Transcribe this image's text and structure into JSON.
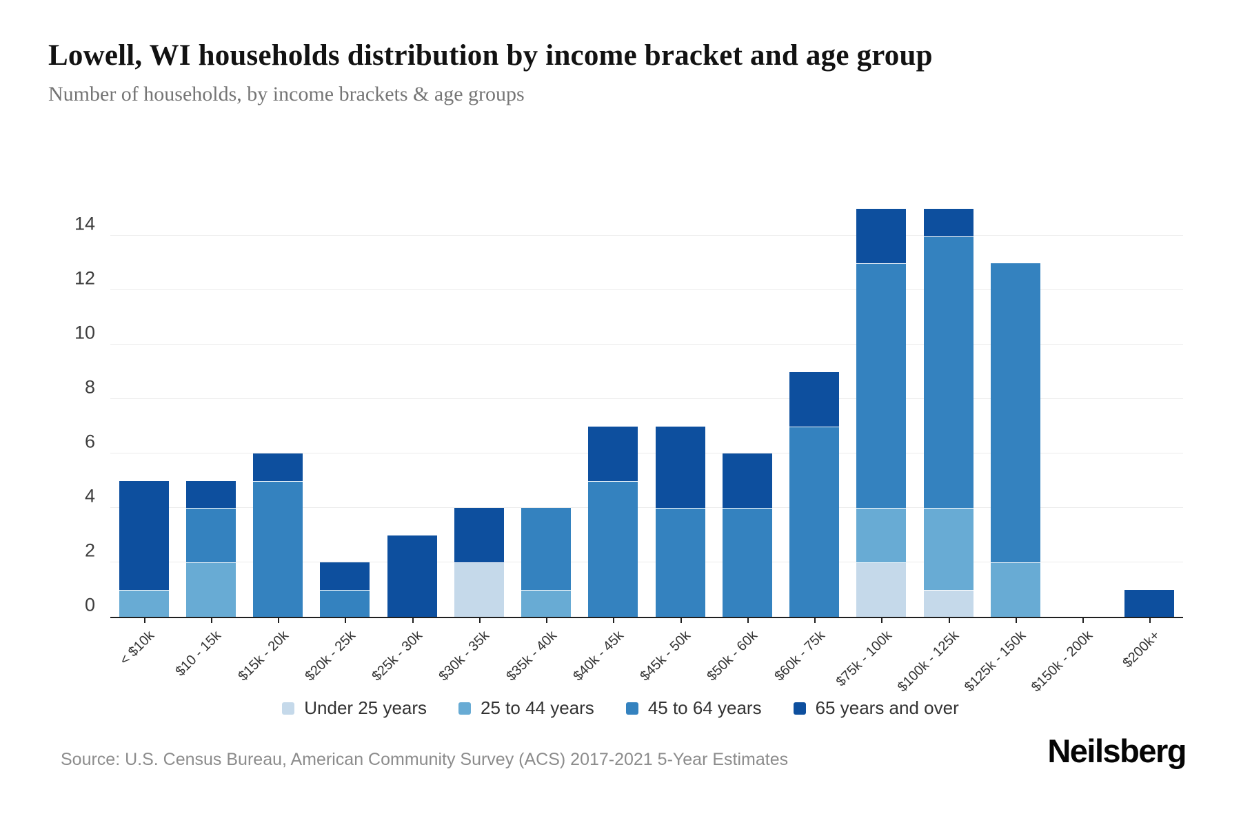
{
  "header": {
    "title": "Lowell, WI households distribution by income bracket and age group",
    "subtitle": "Number of households, by income brackets & age groups"
  },
  "footer": {
    "source": "Source: U.S. Census Bureau, American Community Survey (ACS) 2017-2021 5-Year Estimates",
    "logo": "Neilsberg"
  },
  "colors": {
    "under_25": "#c5d9ea",
    "age_25_44": "#68abd4",
    "age_45_64": "#3482bf",
    "age_65_over": "#0d4f9e",
    "axis_line": "#1f1f1f",
    "gridline": "#ececec",
    "background": "#ffffff"
  },
  "chart_data": {
    "type": "bar",
    "stacked": true,
    "title": "Lowell, WI households distribution by income bracket and age group",
    "xlabel": "",
    "ylabel": "Number of households",
    "categories": [
      "< $10k",
      "$10 - 15k",
      "$15k - 20k",
      "$20k - 25k",
      "$25k - 30k",
      "$30k - 35k",
      "$35k - 40k",
      "$40k - 45k",
      "$45k - 50k",
      "$50k - 60k",
      "$60k - 75k",
      "$75k - 100k",
      "$100k - 125k",
      "$125k - 150k",
      "$150k - 200k",
      "$200k+"
    ],
    "series": [
      {
        "name": "Under 25 years",
        "color": "#c5d9ea",
        "values": [
          0,
          0,
          0,
          0,
          0,
          2,
          0,
          0,
          0,
          0,
          0,
          2,
          1,
          0,
          0,
          0
        ]
      },
      {
        "name": "25 to 44 years",
        "color": "#68abd4",
        "values": [
          1,
          2,
          0,
          0,
          0,
          0,
          1,
          0,
          0,
          0,
          0,
          2,
          3,
          2,
          0,
          0
        ]
      },
      {
        "name": "45 to 64 years",
        "color": "#3482bf",
        "values": [
          0,
          2,
          5,
          1,
          0,
          0,
          3,
          5,
          4,
          4,
          7,
          9,
          10,
          11,
          0,
          0
        ]
      },
      {
        "name": "65 years and over",
        "color": "#0d4f9e",
        "values": [
          4,
          1,
          1,
          1,
          3,
          2,
          0,
          2,
          3,
          2,
          2,
          2,
          1,
          0,
          0,
          1
        ]
      }
    ],
    "totals": [
      5,
      5,
      6,
      2,
      3,
      4,
      4,
      7,
      7,
      6,
      9,
      15,
      15,
      13,
      0,
      1
    ],
    "ylim": [
      0,
      15
    ],
    "yticks": [
      0,
      2,
      4,
      6,
      8,
      10,
      12,
      14
    ],
    "grid": true,
    "legend_position": "bottom"
  }
}
